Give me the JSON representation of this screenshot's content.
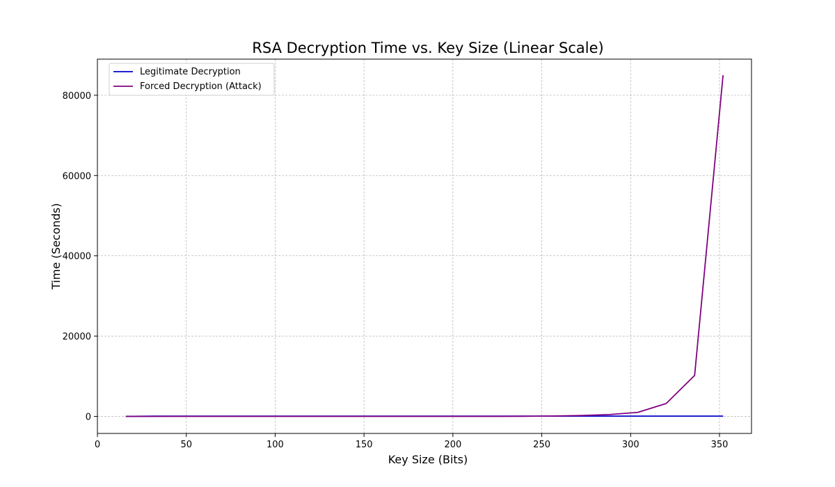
{
  "chart_data": {
    "type": "line",
    "title": "RSA Decryption Time vs. Key Size (Linear Scale)",
    "xlabel": "Key Size (Bits)",
    "ylabel": "Time (Seconds)",
    "xlim": [
      0,
      368
    ],
    "ylim": [
      -4250,
      89000
    ],
    "xticks": [
      0,
      50,
      100,
      150,
      200,
      250,
      300,
      350
    ],
    "yticks": [
      0,
      20000,
      40000,
      60000,
      80000
    ],
    "grid": true,
    "legend_position": "top-left",
    "series": [
      {
        "name": "Legitimate Decryption",
        "color": "#0000cc",
        "x": [
          16,
          32,
          48,
          64,
          80,
          96,
          112,
          128,
          144,
          160,
          176,
          192,
          208,
          224,
          240,
          256,
          272,
          288,
          304,
          320,
          336,
          352
        ],
        "y": [
          0,
          50,
          60,
          60,
          60,
          60,
          60,
          60,
          60,
          60,
          60,
          60,
          60,
          60,
          60,
          60,
          60,
          60,
          60,
          60,
          60,
          60
        ]
      },
      {
        "name": "Forced Decryption (Attack)",
        "color": "#800080",
        "x": [
          16,
          32,
          48,
          64,
          80,
          96,
          112,
          128,
          144,
          160,
          176,
          192,
          208,
          224,
          240,
          256,
          272,
          288,
          304,
          320,
          336,
          352
        ],
        "y": [
          0,
          0,
          0,
          0,
          0,
          0,
          0,
          0,
          0,
          0,
          0,
          0,
          0,
          10,
          30,
          80,
          200,
          450,
          1000,
          3200,
          10200,
          85000
        ]
      }
    ]
  }
}
